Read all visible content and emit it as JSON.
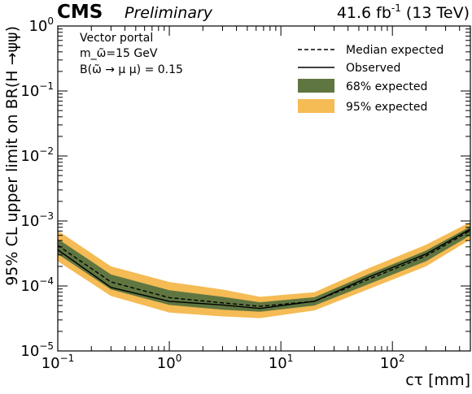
{
  "header": {
    "experiment": "CMS",
    "status": "Preliminary",
    "lumi_value": "41.6 fb",
    "lumi_exponent": "-1",
    "energy": "(13 TeV)"
  },
  "chart_data": {
    "type": "line",
    "xlabel": "cτ [mm]",
    "ylabel": "95% CL upper limit on BR(H →ψψ)",
    "xscale": "log",
    "yscale": "log",
    "xlim": [
      0.1,
      500
    ],
    "ylim": [
      1e-05,
      1
    ],
    "x_tick_labels": [
      {
        "value": 0.1,
        "base": "10",
        "exp": "−1"
      },
      {
        "value": 1,
        "base": "10",
        "exp": "0"
      },
      {
        "value": 10,
        "base": "10",
        "exp": "1"
      },
      {
        "value": 100,
        "base": "10",
        "exp": "2"
      }
    ],
    "y_tick_labels": [
      {
        "value": 1e-05,
        "base": "10",
        "exp": "−5"
      },
      {
        "value": 0.0001,
        "base": "10",
        "exp": "−4"
      },
      {
        "value": 0.001,
        "base": "10",
        "exp": "−3"
      },
      {
        "value": 0.01,
        "base": "10",
        "exp": "−2"
      },
      {
        "value": 0.1,
        "base": "10",
        "exp": "−1"
      },
      {
        "value": 1,
        "base": "10",
        "exp": "0"
      }
    ],
    "annotations": [
      "Vector portal",
      "m_ω̃=15 GeV",
      "B(ω̃ → μ μ) = 0.15"
    ],
    "legend_position": "top-right",
    "legend": [
      {
        "label": "Median expected",
        "style": "dashed"
      },
      {
        "label": "Observed",
        "style": "solid"
      },
      {
        "label": "68% expected",
        "style": "band68"
      },
      {
        "label": "95% expected",
        "style": "band95"
      }
    ],
    "colors": {
      "band68": "#607641",
      "band95": "#f5bb54",
      "line": "#000000"
    },
    "x": [
      0.1,
      0.3,
      1,
      3,
      6.5,
      20,
      60,
      200,
      500
    ],
    "median": [
      0.00042,
      0.000115,
      6.6e-05,
      5.5e-05,
      4.85e-05,
      5.8e-05,
      0.000125,
      0.00029,
      0.00071
    ],
    "observed": [
      0.00036,
      9.5e-05,
      5.8e-05,
      5.1e-05,
      4.5e-05,
      5.8e-05,
      0.000135,
      0.00031,
      0.00075
    ],
    "band68": {
      "low": [
        0.00031,
        8.8e-05,
        5.1e-05,
        4.3e-05,
        4e-05,
        5e-05,
        0.000105,
        0.00024,
        0.0006
      ],
      "high": [
        0.00053,
        0.00015,
        8.6e-05,
        6.8e-05,
        5.6e-05,
        6.7e-05,
        0.00015,
        0.00035,
        0.00082
      ]
    },
    "band95": {
      "low": [
        0.00024,
        7e-05,
        3.9e-05,
        3.4e-05,
        3.2e-05,
        4.2e-05,
        8.8e-05,
        0.0002,
        0.00052
      ],
      "high": [
        0.00071,
        0.0002,
        0.000115,
        8.8e-05,
        6.8e-05,
        8e-05,
        0.000185,
        0.00043,
        0.00096
      ]
    }
  }
}
